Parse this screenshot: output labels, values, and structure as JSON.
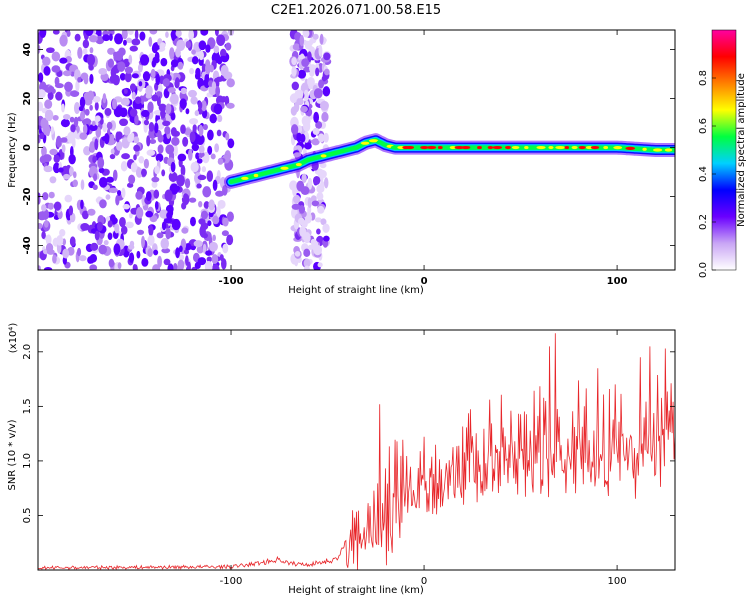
{
  "title": "C2E1.2026.071.00.58.E15",
  "chart_data": [
    {
      "type": "heatmap",
      "xlabel": "Height of straight line (km)",
      "ylabel": "Frequency (Hz)",
      "xlim": [
        -200,
        130
      ],
      "ylim": [
        -50,
        48
      ],
      "x_ticks": [
        "-100",
        "0",
        "100"
      ],
      "y_ticks": [
        "40",
        "20",
        "0",
        "-20",
        "-40"
      ],
      "x_tick_values": [
        -100,
        0,
        100
      ],
      "y_tick_values": [
        40,
        20,
        0,
        -20,
        -40
      ],
      "noise_region_x": [
        -200,
        -100
      ],
      "noise_band_x": [
        -68,
        -50
      ],
      "ridge": [
        {
          "x": -100,
          "y": -14
        },
        {
          "x": -95,
          "y": -13
        },
        {
          "x": -90,
          "y": -12
        },
        {
          "x": -85,
          "y": -11
        },
        {
          "x": -80,
          "y": -10
        },
        {
          "x": -75,
          "y": -9
        },
        {
          "x": -70,
          "y": -8
        },
        {
          "x": -65,
          "y": -7
        },
        {
          "x": -60,
          "y": -5
        },
        {
          "x": -55,
          "y": -4
        },
        {
          "x": -50,
          "y": -3
        },
        {
          "x": -45,
          "y": -2
        },
        {
          "x": -40,
          "y": -1
        },
        {
          "x": -35,
          "y": 0
        },
        {
          "x": -30,
          "y": 2
        },
        {
          "x": -25,
          "y": 3
        },
        {
          "x": -20,
          "y": 1
        },
        {
          "x": -15,
          "y": 0
        },
        {
          "x": -10,
          "y": 0
        },
        {
          "x": 0,
          "y": 0
        },
        {
          "x": 20,
          "y": 0
        },
        {
          "x": 40,
          "y": 0
        },
        {
          "x": 60,
          "y": 0
        },
        {
          "x": 80,
          "y": 0
        },
        {
          "x": 100,
          "y": 0
        },
        {
          "x": 120,
          "y": -1
        },
        {
          "x": 130,
          "y": -1
        }
      ],
      "colorbar": {
        "label": "Normalized spectral amplitude",
        "ticks": [
          "0.0",
          "0.2",
          "0.4",
          "0.6",
          "0.8"
        ],
        "tick_values": [
          0.0,
          0.2,
          0.4,
          0.6,
          0.8
        ],
        "range": [
          0,
          1
        ],
        "colors": [
          "#ffffff",
          "#c9a6f5",
          "#6a00ff",
          "#0000ff",
          "#00d0ff",
          "#00ff40",
          "#ffff00",
          "#ff8000",
          "#ff0000",
          "#ff00a0"
        ]
      }
    },
    {
      "type": "line",
      "xlabel": "Height of straight line (km)",
      "ylabel": "SNR (10 * v/v)",
      "y_multiplier": "(x10⁴)",
      "xlim": [
        -200,
        130
      ],
      "ylim": [
        0,
        2.2
      ],
      "x_ticks": [
        "-100",
        "0",
        "100"
      ],
      "y_ticks": [
        "2.0",
        "1.5",
        "1.0",
        "0.5"
      ],
      "x_tick_values": [
        -100,
        0,
        100
      ],
      "y_tick_values": [
        2.0,
        1.5,
        1.0,
        0.5
      ],
      "series_color": "#e8262a",
      "envelope": [
        {
          "x": -200,
          "y": 0.02
        },
        {
          "x": -100,
          "y": 0.03
        },
        {
          "x": -90,
          "y": 0.05
        },
        {
          "x": -80,
          "y": 0.08
        },
        {
          "x": -75,
          "y": 0.1
        },
        {
          "x": -70,
          "y": 0.06
        },
        {
          "x": -60,
          "y": 0.05
        },
        {
          "x": -45,
          "y": 0.1
        },
        {
          "x": -40,
          "y": 0.25
        },
        {
          "x": -35,
          "y": 0.35
        },
        {
          "x": -25,
          "y": 0.55
        },
        {
          "x": -20,
          "y": 0.75
        },
        {
          "x": -10,
          "y": 0.85
        },
        {
          "x": 0,
          "y": 0.9
        },
        {
          "x": 10,
          "y": 1.0
        },
        {
          "x": 20,
          "y": 1.08
        },
        {
          "x": 30,
          "y": 1.15
        },
        {
          "x": 40,
          "y": 1.2
        },
        {
          "x": 60,
          "y": 1.25
        },
        {
          "x": 80,
          "y": 1.28
        },
        {
          "x": 100,
          "y": 1.28
        },
        {
          "x": 120,
          "y": 1.3
        },
        {
          "x": 130,
          "y": 1.3
        }
      ],
      "peaks": [
        {
          "x": -23,
          "y": 1.52
        },
        {
          "x": 68,
          "y": 2.17
        },
        {
          "x": 65,
          "y": 2.05
        },
        {
          "x": 117,
          "y": 2.05
        },
        {
          "x": 125,
          "y": 2.03
        },
        {
          "x": 112,
          "y": 1.95
        },
        {
          "x": 90,
          "y": 1.85
        }
      ]
    }
  ]
}
